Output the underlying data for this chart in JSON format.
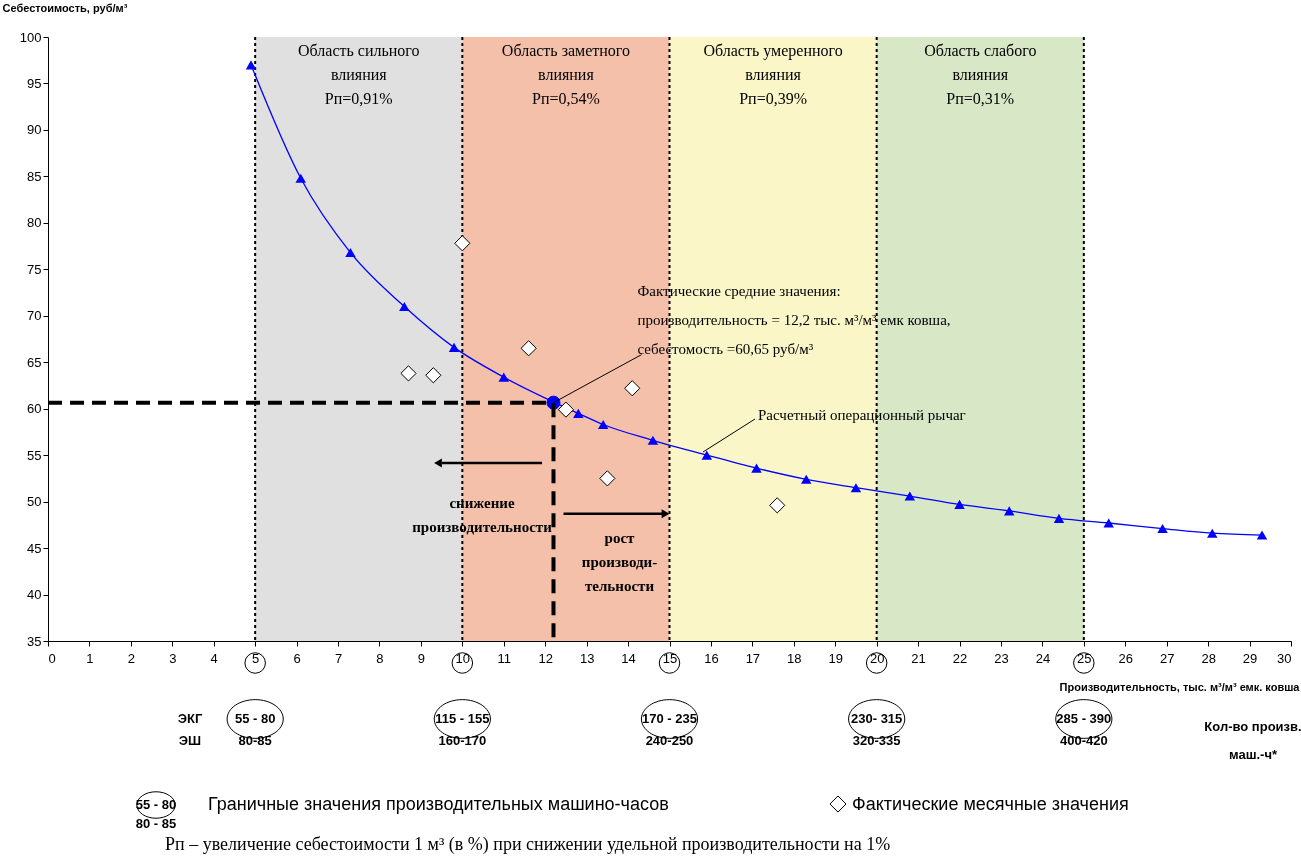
{
  "chart_data": {
    "type": "line",
    "xlabel": "Производительность, тыс. м³/м³ емк. ковша",
    "ylabel": "Себестоимость, руб/м³",
    "xlim": [
      0,
      30
    ],
    "xticks": [
      0,
      1,
      2,
      3,
      4,
      5,
      6,
      7,
      8,
      9,
      10,
      11,
      12,
      13,
      14,
      15,
      16,
      17,
      18,
      19,
      20,
      21,
      22,
      23,
      24,
      25,
      26,
      27,
      28,
      29,
      30
    ],
    "ylim": [
      35,
      100
    ],
    "yticks": [
      35,
      40,
      45,
      50,
      55,
      60,
      65,
      70,
      75,
      80,
      85,
      90,
      95,
      100
    ],
    "grid": false,
    "legend": "bottom",
    "series": [
      {
        "name": "Расчетный операционный рычаг",
        "color": "#0000ff",
        "marker": "triangle",
        "line_style": "solid",
        "x": [
          4.9,
          6.1,
          7.3,
          8.6,
          9.8,
          11.0,
          12.8,
          13.4,
          14.6,
          15.9,
          17.1,
          18.3,
          19.5,
          20.8,
          22.0,
          23.2,
          24.4,
          25.6,
          26.9,
          28.1,
          29.3
        ],
        "values": [
          97,
          84.8,
          76.8,
          71,
          66.6,
          63.4,
          59.5,
          58.3,
          56.6,
          55,
          53.6,
          52.4,
          51.5,
          50.6,
          49.7,
          49,
          48.2,
          47.7,
          47.1,
          46.6,
          46.4
        ]
      },
      {
        "name": "Фактические месячные значения",
        "type": "scatter",
        "color": "#ffffff",
        "marker": "diamond",
        "x": [
          8.7,
          9.3,
          10.0,
          11.6,
          12.5,
          13.5,
          14.1,
          17.6
        ],
        "values": [
          63.8,
          63.6,
          77.8,
          66.5,
          59.9,
          52.5,
          62.2,
          49.6
        ]
      },
      {
        "type": "scatter",
        "color": "#0000ff",
        "marker": "circle",
        "x": [
          12.2
        ],
        "values": [
          60.65
        ]
      },
      {
        "color": "#000000",
        "marker": "none",
        "line_style": "dashed",
        "x": [
          0,
          12.2,
          12.2
        ],
        "values": [
          60.65,
          60.65,
          35
        ]
      }
    ],
    "bands": [
      {
        "axis": "x",
        "from": 5,
        "to": 10,
        "color": "#e0e0e0",
        "label": "Область сильного\nвлияния\nРп=0,91%"
      },
      {
        "axis": "x",
        "from": 10,
        "to": 15,
        "color": "#f4c0aa",
        "label": "Область заметного\nвлияния\nРп=0,54%"
      },
      {
        "axis": "x",
        "from": 15,
        "to": 20,
        "color": "#fbf6c8",
        "label": "Область умеренного\nвлияния\nРп=0,39%"
      },
      {
        "axis": "x",
        "from": 20,
        "to": 25,
        "color": "#d8e8c6",
        "label": "Область слабого\nвлияния\nРп=0,31%"
      }
    ],
    "ref_lines": [
      {
        "axis": "x",
        "value": 5,
        "line_style": "dotted",
        "color": "#000000"
      },
      {
        "axis": "x",
        "value": 10,
        "line_style": "dotted",
        "color": "#000000"
      },
      {
        "axis": "x",
        "value": 15,
        "line_style": "dotted",
        "color": "#000000"
      },
      {
        "axis": "x",
        "value": 20,
        "line_style": "dotted",
        "color": "#000000"
      },
      {
        "axis": "x",
        "value": 25,
        "line_style": "dotted",
        "color": "#000000"
      }
    ],
    "annotations": [
      {
        "text": "Фактические средние значения:\nпроизводительность = 12,2 тыс. м³/м³ емк ковша,\n себестомость =60,65 руб/м³",
        "x": 12.2,
        "y": 60.65
      },
      "снижение\nпроизводительности",
      {
        "text": "рост\nпроизводи-\nтельности",
        "x": 15,
        "y": 48.7
      },
      "ЭКГ\nЭШ",
      "55 - 80\n80-85",
      "115 - 155\n160-170",
      "170 - 235\n240-250",
      "230- 315\n320-335",
      "285 - 390\n400-420",
      "Кол-во произв.\nмаш.-ч*",
      "55 - 80\n80 - 85",
      "Граничные значения производительных машино-часов",
      "Рп – увеличение себестоимости 1 м³ (в %) при снижении удельной производительности на 1%"
    ]
  }
}
